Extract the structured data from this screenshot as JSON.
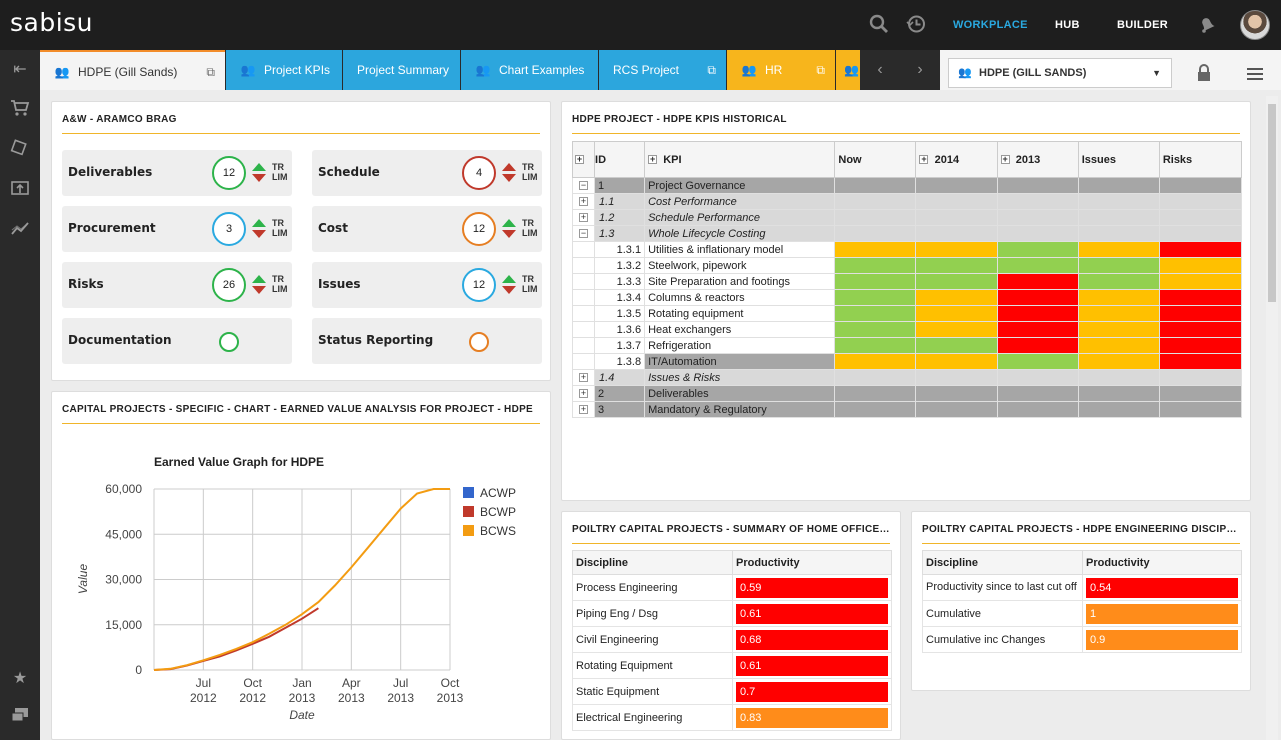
{
  "app": {
    "logo": "sabisu"
  },
  "topnav": {
    "workplace": "WORKPLACE",
    "hub": "HUB",
    "builder": "BUILDER"
  },
  "tabs": [
    {
      "label": "HDPE (Gill Sands)"
    },
    {
      "label": "Project KPIs"
    },
    {
      "label": "Project Summary"
    },
    {
      "label": "Chart Examples"
    },
    {
      "label": "RCS Project"
    },
    {
      "label": "HR"
    }
  ],
  "selector": {
    "value": "HDPE (GILL SANDS)"
  },
  "kpi_panel": {
    "title": "A&W - ARAMCO BRAG",
    "tr": "TR",
    "lim": "LIM",
    "tiles": [
      {
        "label": "Deliverables",
        "value": "12",
        "ring": "#2db34a"
      },
      {
        "label": "Schedule",
        "value": "4",
        "ring": "#c0392b"
      },
      {
        "label": "Procurement",
        "value": "3",
        "ring": "#2aa9e0"
      },
      {
        "label": "Cost",
        "value": "12",
        "ring": "#e67e22"
      },
      {
        "label": "Risks",
        "value": "26",
        "ring": "#2db34a"
      },
      {
        "label": "Issues",
        "value": "12",
        "ring": "#2aa9e0"
      },
      {
        "label": "Documentation",
        "value": "",
        "ring": "#2db34a"
      },
      {
        "label": "Status Reporting",
        "value": "",
        "ring": "#e67e22"
      }
    ]
  },
  "chart_panel": {
    "title": "CAPITAL PROJECTS - SPECIFIC - CHART - EARNED VALUE ANALYSIS FOR PROJECT - HDPE"
  },
  "chart_data": {
    "type": "line",
    "title": "Earned Value Graph for HDPE",
    "xlabel": "Date",
    "ylabel": "Value",
    "ylim": [
      0,
      60000
    ],
    "yticks": [
      "60,000",
      "45,000",
      "30,000",
      "15,000",
      "0"
    ],
    "xticks": [
      [
        "Jul",
        "2012"
      ],
      [
        "Oct",
        "2012"
      ],
      [
        "Jan",
        "2013"
      ],
      [
        "Apr",
        "2013"
      ],
      [
        "Jul",
        "2013"
      ],
      [
        "Oct",
        "2013"
      ]
    ],
    "grid": true,
    "legend": "right",
    "series": [
      {
        "name": "ACWP",
        "color": "#3366cc",
        "x": [],
        "y": []
      },
      {
        "name": "BCWP",
        "color": "#c0392b",
        "x": [
          "2012-04",
          "2012-05",
          "2012-06",
          "2012-07",
          "2012-08",
          "2012-09",
          "2012-10",
          "2012-11",
          "2012-12",
          "2013-01",
          "2013-02"
        ],
        "y": [
          0,
          300,
          1500,
          3000,
          4500,
          6500,
          8700,
          11000,
          14000,
          17000,
          20500
        ]
      },
      {
        "name": "BCWS",
        "color": "#f39c12",
        "x": [
          "2012-04",
          "2012-05",
          "2012-06",
          "2012-07",
          "2012-08",
          "2012-09",
          "2012-10",
          "2012-11",
          "2012-12",
          "2013-01",
          "2013-02",
          "2013-03",
          "2013-04",
          "2013-05",
          "2013-06",
          "2013-07",
          "2013-08",
          "2013-09",
          "2013-10"
        ],
        "y": [
          0,
          400,
          1600,
          3200,
          5000,
          7000,
          9200,
          12000,
          15000,
          18500,
          22500,
          28000,
          34000,
          40500,
          47000,
          53500,
          58500,
          60000,
          60000
        ]
      }
    ]
  },
  "kpi_hist": {
    "title": "HDPE PROJECT - HDPE KPIS HISTORICAL",
    "headers": {
      "id": "ID",
      "kpi": "KPI",
      "now": "Now",
      "y2014": "2014",
      "y2013": "2013",
      "issues": "Issues",
      "risks": "Risks"
    },
    "colors": {
      "g": "#92d050",
      "a": "#ffc000",
      "r": "#ff0000",
      "dk": "#a6a6a6",
      "lt": "#d9d9d9"
    },
    "rows": [
      {
        "toggle": "−",
        "id": "1",
        "kpi": "Project Governance",
        "style": "dk",
        "cells": []
      },
      {
        "toggle": "+",
        "id": "1.1",
        "kpi": "Cost Performance",
        "style": "lt",
        "cells": []
      },
      {
        "toggle": "+",
        "id": "1.2",
        "kpi": "Schedule Performance",
        "style": "lt",
        "cells": []
      },
      {
        "toggle": "−",
        "id": "1.3",
        "kpi": "Whole Lifecycle Costing",
        "style": "lt",
        "cells": []
      },
      {
        "toggle": "",
        "id": "1.3.1",
        "kpi": "Utilities & inflationary model",
        "style": "leaf",
        "cells": [
          "a",
          "a",
          "g",
          "a",
          "r"
        ]
      },
      {
        "toggle": "",
        "id": "1.3.2",
        "kpi": "Steelwork, pipework",
        "style": "leaf",
        "cells": [
          "g",
          "g",
          "g",
          "g",
          "a"
        ]
      },
      {
        "toggle": "",
        "id": "1.3.3",
        "kpi": "Site Preparation and footings",
        "style": "leaf",
        "cells": [
          "g",
          "g",
          "r",
          "g",
          "a"
        ]
      },
      {
        "toggle": "",
        "id": "1.3.4",
        "kpi": "Columns & reactors",
        "style": "leaf",
        "cells": [
          "g",
          "a",
          "r",
          "a",
          "r"
        ]
      },
      {
        "toggle": "",
        "id": "1.3.5",
        "kpi": "Rotating equipment",
        "style": "leaf",
        "cells": [
          "g",
          "a",
          "r",
          "a",
          "r"
        ]
      },
      {
        "toggle": "",
        "id": "1.3.6",
        "kpi": "Heat exchangers",
        "style": "leaf",
        "cells": [
          "g",
          "a",
          "r",
          "a",
          "r"
        ]
      },
      {
        "toggle": "",
        "id": "1.3.7",
        "kpi": "Refrigeration",
        "style": "leaf",
        "cells": [
          "g",
          "g",
          "r",
          "a",
          "r"
        ]
      },
      {
        "toggle": "",
        "id": "1.3.8",
        "kpi": "IT/Automation",
        "style": "leafhl",
        "cells": [
          "a",
          "a",
          "g",
          "a",
          "r"
        ]
      },
      {
        "toggle": "+",
        "id": "1.4",
        "kpi": "Issues & Risks",
        "style": "lt",
        "cells": []
      },
      {
        "toggle": "+",
        "id": "2",
        "kpi": "Deliverables",
        "style": "dk",
        "cells": []
      },
      {
        "toggle": "+",
        "id": "3",
        "kpi": "Mandatory & Regulatory",
        "style": "dk",
        "cells": []
      }
    ]
  },
  "summary_panel": {
    "title": "POILTRY CAPITAL PROJECTS - SUMMARY OF HOME OFFICE AND ...",
    "headers": [
      "Discipline",
      "Productivity"
    ],
    "rows": [
      {
        "discipline": "Process Engineering",
        "value": "0.59",
        "color": "#ff0000"
      },
      {
        "discipline": "Piping Eng / Dsg",
        "value": "0.61",
        "color": "#ff0000"
      },
      {
        "discipline": "Civil Engineering",
        "value": "0.68",
        "color": "#ff0000"
      },
      {
        "discipline": "Rotating Equipment",
        "value": "0.61",
        "color": "#ff0000"
      },
      {
        "discipline": "Static Equipment",
        "value": "0.7",
        "color": "#ff0000"
      },
      {
        "discipline": "Electrical Engineering",
        "value": "0.83",
        "color": "#ff8c1a"
      }
    ]
  },
  "discipline_panel": {
    "title": "POILTRY CAPITAL PROJECTS - HDPE ENGINEERING DISCIPLINE P...",
    "headers": [
      "Discipline",
      "Productivity"
    ],
    "rows": [
      {
        "discipline": "Productivity since to last cut off",
        "value": "0.54",
        "color": "#ff0000"
      },
      {
        "discipline": "Cumulative",
        "value": "1",
        "color": "#ff8c1a"
      },
      {
        "discipline": "Cumulative inc Changes",
        "value": "0.9",
        "color": "#ff8c1a"
      }
    ]
  }
}
